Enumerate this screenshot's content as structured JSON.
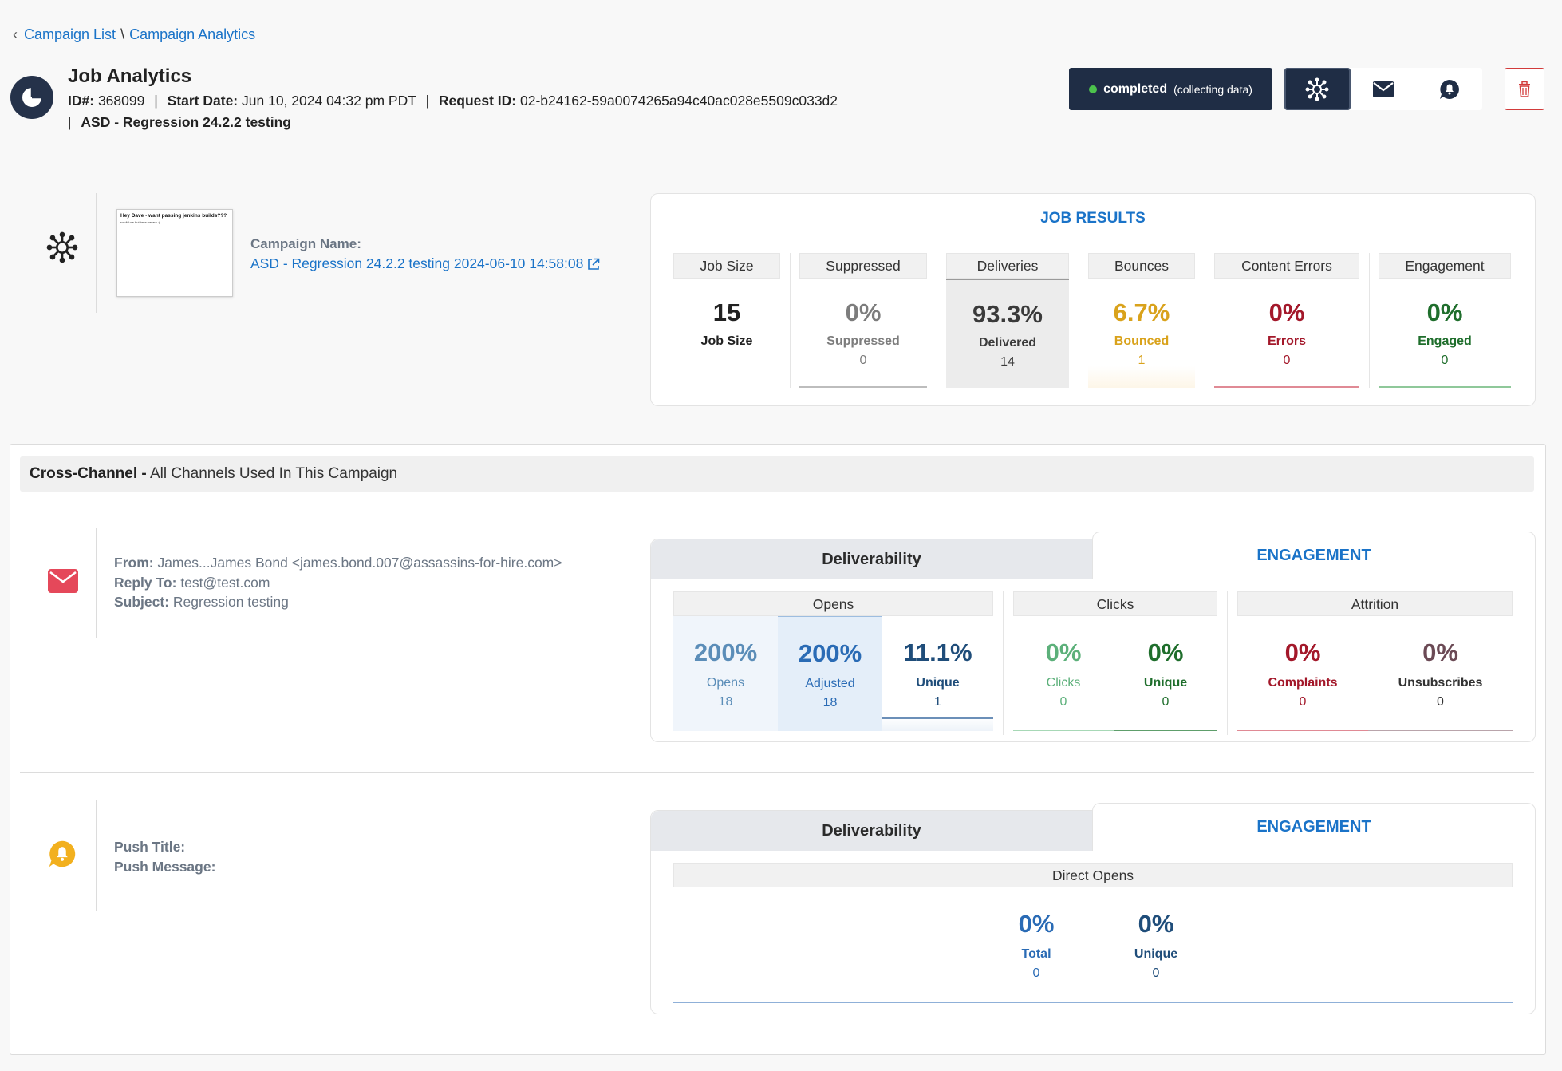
{
  "breadcrumb": {
    "back": "Campaign List",
    "separator": "\\",
    "current": "Campaign Analytics"
  },
  "header": {
    "title": "Job Analytics",
    "id_label": "ID#:",
    "id_value": "368099",
    "start_label": "Start Date:",
    "start_value": "Jun 10, 2024 04:32 pm PDT",
    "request_label": "Request ID:",
    "request_value": "02-b24162-59a0074265a94c40ac028e5509c033d2",
    "campaign_tag": "ASD - Regression 24.2.2 testing",
    "pipe": "|"
  },
  "status": {
    "state": "completed",
    "detail": "(collecting data)"
  },
  "campaign": {
    "name_label": "Campaign Name:",
    "name_value": "ASD - Regression 24.2.2 testing 2024-06-10 14:58:08",
    "thumb_title": "Hey Dave - want passing jenkins builds???",
    "thumb_body": "so did we but here we are :("
  },
  "job_results": {
    "title": "JOB RESULTS",
    "columns": [
      {
        "head": "Job Size",
        "big": "15",
        "label": "Job Size",
        "count": ""
      },
      {
        "head": "Suppressed",
        "big": "0%",
        "label": "Suppressed",
        "count": "0"
      },
      {
        "head": "Deliveries",
        "big": "93.3%",
        "label": "Delivered",
        "count": "14"
      },
      {
        "head": "Bounces",
        "big": "6.7%",
        "label": "Bounced",
        "count": "1"
      },
      {
        "head": "Content Errors",
        "big": "0%",
        "label": "Errors",
        "count": "0"
      },
      {
        "head": "Engagement",
        "big": "0%",
        "label": "Engaged",
        "count": "0"
      }
    ]
  },
  "cross_channel": {
    "title_bold": "Cross-Channel -",
    "title_rest": "All Channels Used In This Campaign"
  },
  "email": {
    "from_label": "From:",
    "from_value": "James...James Bond <james.bond.007@assassins-for-hire.com>",
    "reply_label": "Reply To:",
    "reply_value": "test@test.com",
    "subject_label": "Subject:",
    "subject_value": "Regression testing",
    "tab_deliverability": "Deliverability",
    "tab_engagement": "ENGAGEMENT",
    "groups": {
      "opens": "Opens",
      "clicks": "Clicks",
      "attrition": "Attrition"
    },
    "cells": [
      {
        "big": "200%",
        "label": "Opens",
        "count": "18"
      },
      {
        "big": "200%",
        "label": "Adjusted",
        "count": "18"
      },
      {
        "big": "11.1%",
        "label": "Unique",
        "count": "1"
      },
      {
        "big": "0%",
        "label": "Clicks",
        "count": "0"
      },
      {
        "big": "0%",
        "label": "Unique",
        "count": "0"
      },
      {
        "big": "0%",
        "label": "Complaints",
        "count": "0"
      },
      {
        "big": "0%",
        "label": "Unsubscribes",
        "count": "0"
      }
    ]
  },
  "push": {
    "title_label": "Push Title:",
    "message_label": "Push Message:",
    "tab_deliverability": "Deliverability",
    "tab_engagement": "ENGAGEMENT",
    "group": "Direct Opens",
    "cells": [
      {
        "big": "0%",
        "label": "Total",
        "count": "0"
      },
      {
        "big": "0%",
        "label": "Unique",
        "count": "0"
      }
    ]
  },
  "colors": {
    "navy": "#1f2d45",
    "link": "#1a73c8",
    "delivered_bg": "#ececec",
    "bounce": "#d9a21b",
    "error": "#a3182a",
    "engaged": "#1f6e2c",
    "suppressed": "#7d7d7d",
    "opens": "#5b8db8",
    "adjusted": "#2a6bb5",
    "unique": "#1f4d7a",
    "clicks": "#5cb07a",
    "unsub": "#6b4a55",
    "email_icon": "#e5485a",
    "push_icon": "#f2b01e"
  }
}
